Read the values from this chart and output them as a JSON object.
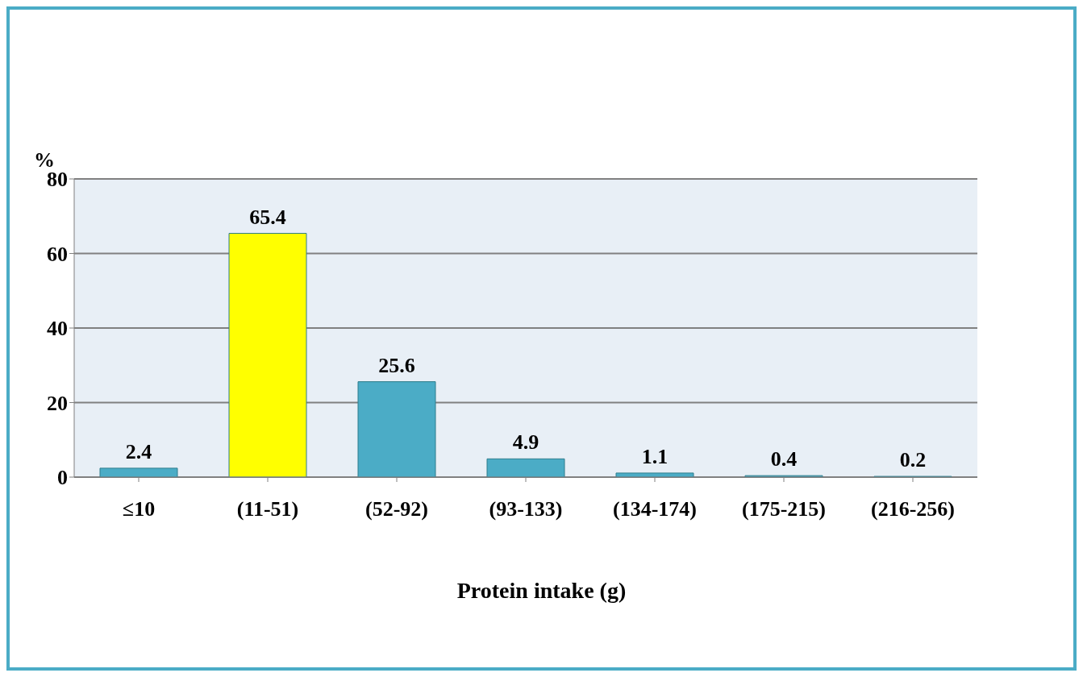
{
  "chart_data": {
    "type": "bar",
    "ylabel": "%",
    "xlabel": "Protein intake (g)",
    "categories": [
      "≤10",
      "(11-51)",
      "(52-92)",
      "(93-133)",
      "(134-174)",
      "(175-215)",
      "(216-256)"
    ],
    "values": [
      2.4,
      65.4,
      25.6,
      4.9,
      1.1,
      0.4,
      0.2
    ],
    "colors": [
      "#4bacc6",
      "#ffff00",
      "#4bacc6",
      "#4bacc6",
      "#4bacc6",
      "#4bacc6",
      "#4bacc6"
    ],
    "ylim": [
      0,
      80
    ],
    "yticks": [
      0,
      20,
      40,
      60,
      80
    ],
    "grid": "y",
    "data_labels": true
  }
}
